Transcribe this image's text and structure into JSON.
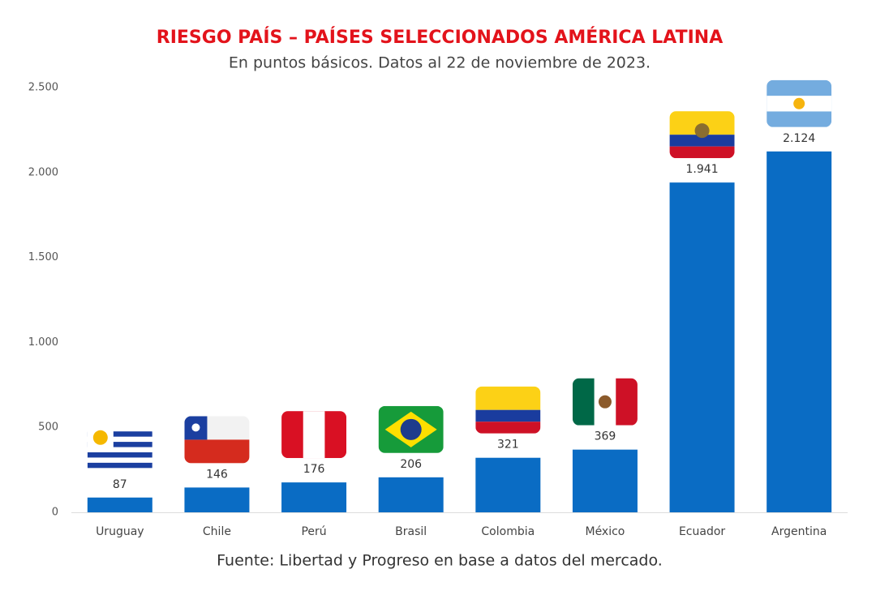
{
  "chart_data": {
    "type": "bar",
    "title": "RIESGO PAÍS – PAÍSES SELECCIONADOS AMÉRICA LATINA",
    "subtitle": "En puntos básicos. Datos al 22 de noviembre de 2023.",
    "source": "Fuente: Libertad y Progreso en base a datos del mercado.",
    "categories": [
      "Uruguay",
      "Chile",
      "Perú",
      "Brasil",
      "Colombia",
      "México",
      "Ecuador",
      "Argentina"
    ],
    "values": [
      87,
      146,
      176,
      206,
      321,
      369,
      1941,
      2124
    ],
    "value_labels": [
      "87",
      "146",
      "176",
      "206",
      "321",
      "369",
      "1.941",
      "2.124"
    ],
    "color": "#0a6cc4",
    "ylim": [
      0,
      2500
    ],
    "yticks": [
      0,
      {
        "value": 500,
        "label": "500"
      },
      {
        "value": 1000,
        "label": "1.000"
      },
      {
        "value": 1500,
        "label": "1.500"
      },
      {
        "value": 2000,
        "label": "2.000"
      },
      {
        "value": 2500,
        "label": "2.500"
      }
    ],
    "grid": false
  }
}
